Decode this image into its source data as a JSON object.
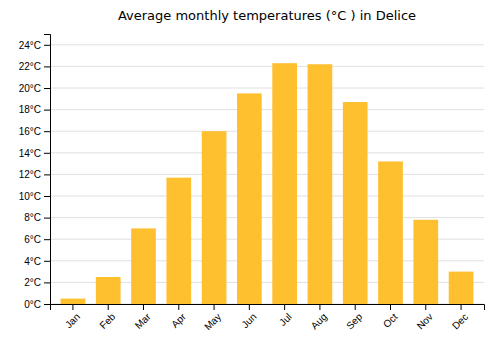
{
  "chart_data": {
    "type": "bar",
    "title": "Average monthly temperatures (°C ) in Delice",
    "categories": [
      "Jan",
      "Feb",
      "Mar",
      "Apr",
      "May",
      "Jun",
      "Jul",
      "Aug",
      "Sep",
      "Oct",
      "Nov",
      "Dec"
    ],
    "values": [
      0.5,
      2.5,
      7.0,
      11.7,
      16.0,
      19.5,
      22.3,
      22.2,
      18.7,
      13.2,
      7.8,
      3.0
    ],
    "color": "#FFC030",
    "ylim": [
      0,
      25
    ],
    "yticks": [
      {
        "value": 0,
        "label": "0°C"
      },
      {
        "value": 2,
        "label": "2°C"
      },
      {
        "value": 4,
        "label": "4°C"
      },
      {
        "value": 6,
        "label": "6°C"
      },
      {
        "value": 8,
        "label": "8°C"
      },
      {
        "value": 10,
        "label": "10°C"
      },
      {
        "value": 12,
        "label": "12°C"
      },
      {
        "value": 14,
        "label": "14°C"
      },
      {
        "value": 16,
        "label": "16°C"
      },
      {
        "value": 18,
        "label": "18°C"
      },
      {
        "value": 20,
        "label": "20°C"
      },
      {
        "value": 22,
        "label": "22°C"
      },
      {
        "value": 24,
        "label": "24°C"
      }
    ],
    "grid": true
  }
}
